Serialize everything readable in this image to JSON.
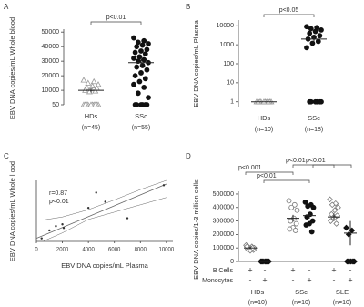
{
  "chart_data": [
    {
      "type": "strip",
      "panel": "A",
      "ylabel": "EBV DNA copies/mL Whole blood",
      "categories": [
        "HDs",
        "SSc"
      ],
      "category_notes": [
        "(n=45)",
        "(n=55)"
      ],
      "ylim": [
        50,
        52000
      ],
      "yticks": [
        50,
        10000,
        20000,
        30000,
        40000,
        50000
      ],
      "brackets": [
        "p<0.01"
      ],
      "groups": [
        {
          "marker": "triangle",
          "filled": false,
          "color": "#999999",
          "mean": 10000,
          "error": 1500,
          "values": [
            17000,
            16000,
            15000,
            14000,
            13000,
            12000,
            11500,
            11000,
            10000,
            9500,
            9000,
            50,
            50,
            50,
            50,
            50,
            50,
            50,
            50,
            50,
            50
          ]
        },
        {
          "marker": "circle",
          "filled": true,
          "color": "#111111",
          "mean": 29000,
          "error": 2500,
          "values": [
            46000,
            44000,
            43000,
            42000,
            41000,
            40000,
            38000,
            37000,
            36000,
            35000,
            33000,
            32000,
            31000,
            30000,
            29000,
            27000,
            26000,
            24000,
            22000,
            20000,
            18000,
            16000,
            14000,
            12000,
            8000,
            5000,
            50,
            50,
            50,
            50,
            50,
            50
          ]
        }
      ]
    },
    {
      "type": "strip",
      "panel": "B",
      "ylabel": "EBV DNA copies/mL Plasma",
      "categories": [
        "HDs",
        "SSc"
      ],
      "category_notes": [
        "(n=10)",
        "(n=18)"
      ],
      "log_scale": true,
      "ylim": [
        0.5,
        20000
      ],
      "yticks": [
        1,
        10,
        100,
        1000,
        10000
      ],
      "brackets": [
        "p<0.05"
      ],
      "groups": [
        {
          "marker": "triangle",
          "filled": false,
          "color": "#999999",
          "mean": 1,
          "error": 0,
          "values": [
            1,
            1,
            1,
            1,
            1,
            1,
            1,
            1,
            1,
            1
          ]
        },
        {
          "marker": "circle",
          "filled": true,
          "color": "#111111",
          "mean": 2000,
          "error": 600,
          "values": [
            9000,
            8000,
            7000,
            6000,
            5000,
            4000,
            3000,
            2500,
            2000,
            1500,
            1200,
            700,
            1,
            1,
            1,
            1,
            1,
            1
          ]
        }
      ]
    },
    {
      "type": "scatter",
      "panel": "C",
      "xlabel": "EBV DNA copies/mL Plasma",
      "ylabel": "EBV DNA copies/mL Whole l ood",
      "annotations": [
        "r=0.87",
        "p<0.01"
      ],
      "xlim": [
        0,
        10500
      ],
      "ylim": [
        0,
        100
      ],
      "xticks": [
        0,
        2000,
        4000,
        6000,
        8000,
        10000
      ],
      "x": [
        400,
        1000,
        1500,
        2000,
        2100,
        4000,
        4600,
        5300,
        7000,
        9800
      ],
      "y": [
        5,
        18,
        25,
        28,
        22,
        55,
        80,
        65,
        38,
        92
      ],
      "fit": {
        "x": [
          0,
          10000
        ],
        "y": [
          5,
          94
        ]
      },
      "ci": {
        "x": [
          500,
          2000,
          4000,
          6000,
          8000,
          10000
        ],
        "upper": [
          35,
          40,
          52,
          68,
          85,
          100
        ],
        "lower": [
          0,
          14,
          36,
          48,
          60,
          72
        ]
      }
    },
    {
      "type": "strip",
      "panel": "D",
      "ylabel": "EBV DNA copies/1-3 million cells",
      "categories": [
        "HDs",
        "SSc",
        "SLE"
      ],
      "category_notes": [
        "(n=10)",
        "(n=10)",
        "(n=10)"
      ],
      "row_labels": [
        "B Cells",
        "Monocytes"
      ],
      "sign_rows": [
        [
          "+",
          "-",
          "+",
          "-",
          "+",
          "-"
        ],
        [
          "-",
          "+",
          "-",
          "+",
          "-",
          "+"
        ]
      ],
      "ylim": [
        0,
        520000
      ],
      "yticks": [
        0,
        100000,
        200000,
        300000,
        400000,
        500000
      ],
      "brackets": [
        "p<0.001",
        "p<0.01",
        "p<0.01",
        "p<0.01"
      ],
      "groups": [
        {
          "marker": "diamond",
          "filled": false,
          "color": "#777777",
          "mean": 100000,
          "error": 8000,
          "values": [
            120000,
            110000,
            105000,
            100000,
            95000,
            90000,
            85000,
            80000,
            110000,
            100000
          ]
        },
        {
          "marker": "diamond",
          "filled": true,
          "color": "#111111",
          "mean": 0,
          "error": 0,
          "values": [
            0,
            0,
            0,
            0,
            0,
            0,
            0,
            0,
            0,
            0
          ]
        },
        {
          "marker": "circle",
          "filled": false,
          "color": "#777777",
          "mean": 320000,
          "error": 25000,
          "values": [
            450000,
            420000,
            400000,
            380000,
            320000,
            300000,
            280000,
            250000,
            240000,
            230000
          ]
        },
        {
          "marker": "circle",
          "filled": true,
          "color": "#111111",
          "mean": 340000,
          "error": 22000,
          "values": [
            440000,
            420000,
            410000,
            400000,
            350000,
            330000,
            300000,
            280000,
            270000,
            220000
          ]
        },
        {
          "marker": "diamond",
          "filled": false,
          "color": "#777777",
          "mean": 330000,
          "error": 25000,
          "values": [
            460000,
            430000,
            420000,
            400000,
            380000,
            350000,
            340000,
            320000,
            300000,
            280000
          ]
        },
        {
          "marker": "diamond",
          "filled": true,
          "color": "#111111",
          "mean": 210000,
          "error": 90000,
          "values": [
            250000,
            230000,
            200000,
            0,
            0,
            0,
            0,
            0,
            0,
            0
          ]
        }
      ]
    }
  ]
}
